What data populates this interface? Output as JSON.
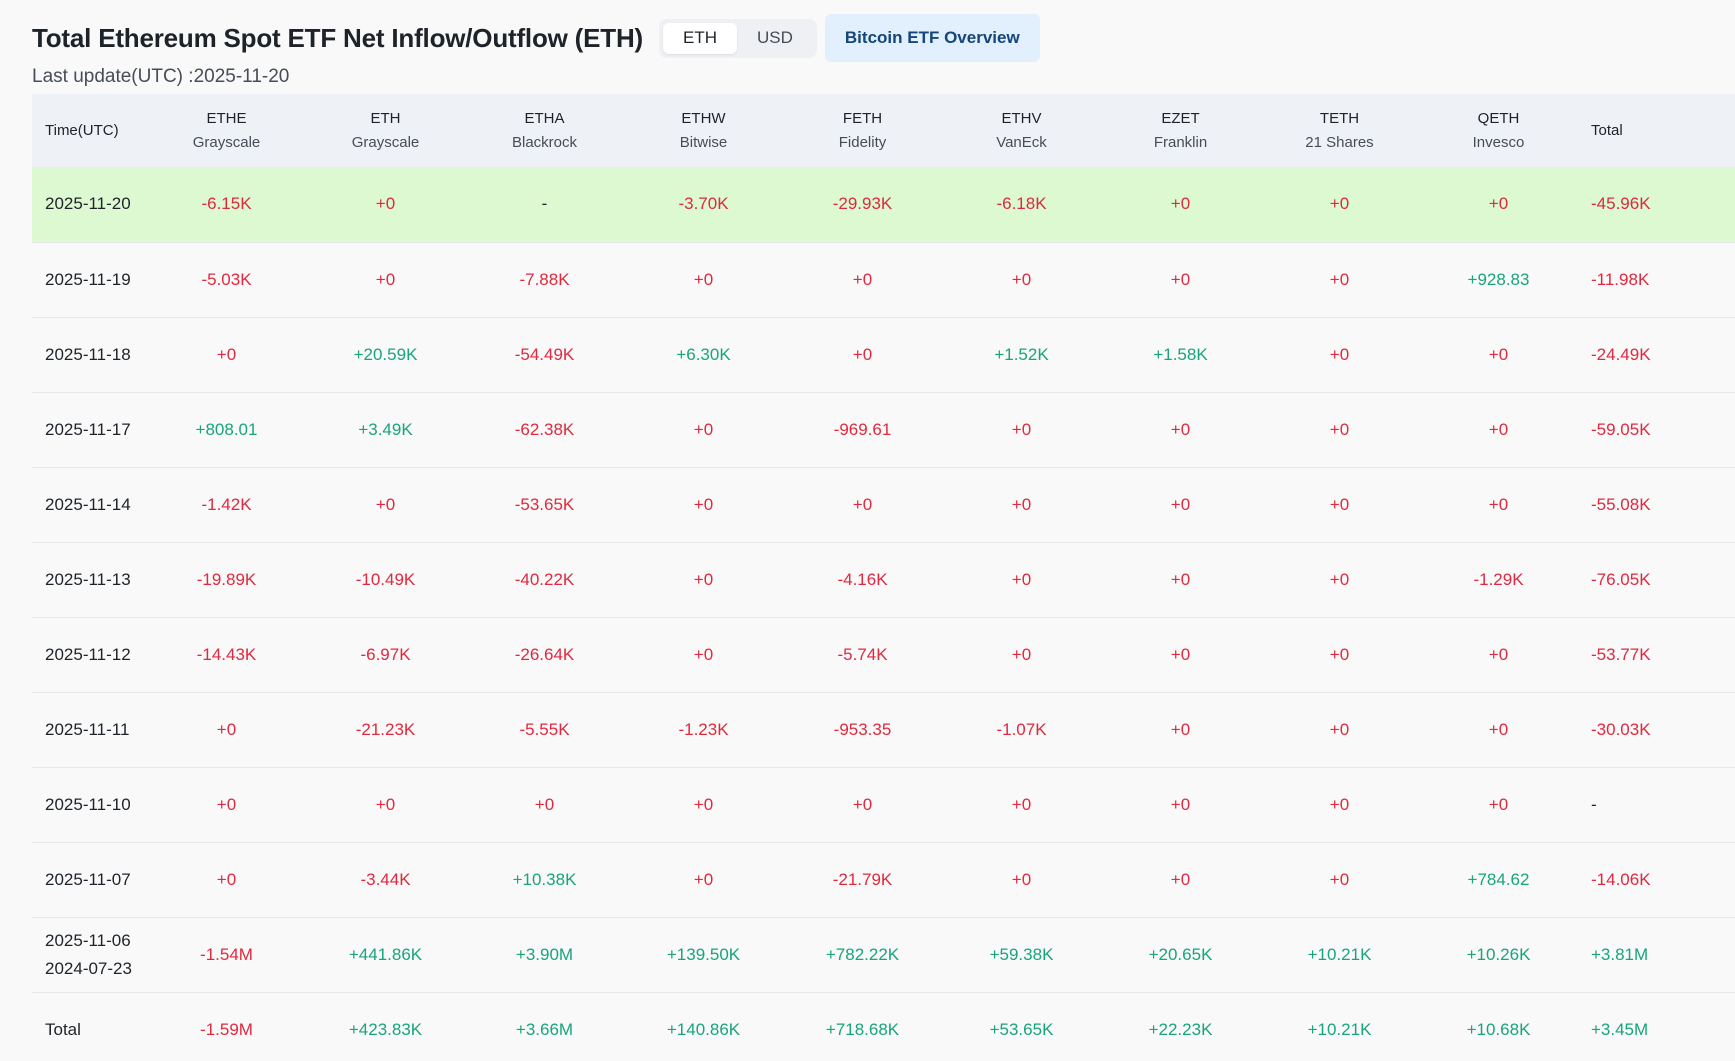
{
  "header": {
    "title": "Total Ethereum Spot ETF Net Inflow/Outflow (ETH)",
    "toggle": {
      "eth_label": "ETH",
      "usd_label": "USD"
    },
    "overview_button": "Bitcoin ETF Overview",
    "last_update": "Last update(UTC) :2025-11-20"
  },
  "colors": {
    "negative": "#e0293f",
    "positive": "#18a57b",
    "highlight_row": "#dcf9d2",
    "header_bg": "#eef1f5"
  },
  "table": {
    "columns": [
      {
        "ticker": "Time(UTC)",
        "issuer": ""
      },
      {
        "ticker": "ETHE",
        "issuer": "Grayscale"
      },
      {
        "ticker": "ETH",
        "issuer": "Grayscale"
      },
      {
        "ticker": "ETHA",
        "issuer": "Blackrock"
      },
      {
        "ticker": "ETHW",
        "issuer": "Bitwise"
      },
      {
        "ticker": "FETH",
        "issuer": "Fidelity"
      },
      {
        "ticker": "ETHV",
        "issuer": "VanEck"
      },
      {
        "ticker": "EZET",
        "issuer": "Franklin"
      },
      {
        "ticker": "TETH",
        "issuer": "21 Shares"
      },
      {
        "ticker": "QETH",
        "issuer": "Invesco"
      },
      {
        "ticker": "Total",
        "issuer": ""
      }
    ],
    "rows": [
      {
        "date": "2025-11-20",
        "date2": "",
        "highlight": true,
        "values": [
          "-6.15K",
          "+0",
          "-",
          "-3.70K",
          "-29.93K",
          "-6.18K",
          "+0",
          "+0",
          "+0",
          "-45.96K"
        ],
        "signs": [
          "neg",
          "neg",
          "neutral",
          "neg",
          "neg",
          "neg",
          "neg",
          "neg",
          "neg",
          "neg"
        ]
      },
      {
        "date": "2025-11-19",
        "date2": "",
        "highlight": false,
        "values": [
          "-5.03K",
          "+0",
          "-7.88K",
          "+0",
          "+0",
          "+0",
          "+0",
          "+0",
          "+928.83",
          "-11.98K"
        ],
        "signs": [
          "neg",
          "neg",
          "neg",
          "neg",
          "neg",
          "neg",
          "neg",
          "neg",
          "pos",
          "neg"
        ]
      },
      {
        "date": "2025-11-18",
        "date2": "",
        "highlight": false,
        "values": [
          "+0",
          "+20.59K",
          "-54.49K",
          "+6.30K",
          "+0",
          "+1.52K",
          "+1.58K",
          "+0",
          "+0",
          "-24.49K"
        ],
        "signs": [
          "neg",
          "pos",
          "neg",
          "pos",
          "neg",
          "pos",
          "pos",
          "neg",
          "neg",
          "neg"
        ]
      },
      {
        "date": "2025-11-17",
        "date2": "",
        "highlight": false,
        "values": [
          "+808.01",
          "+3.49K",
          "-62.38K",
          "+0",
          "-969.61",
          "+0",
          "+0",
          "+0",
          "+0",
          "-59.05K"
        ],
        "signs": [
          "pos",
          "pos",
          "neg",
          "neg",
          "neg",
          "neg",
          "neg",
          "neg",
          "neg",
          "neg"
        ]
      },
      {
        "date": "2025-11-14",
        "date2": "",
        "highlight": false,
        "values": [
          "-1.42K",
          "+0",
          "-53.65K",
          "+0",
          "+0",
          "+0",
          "+0",
          "+0",
          "+0",
          "-55.08K"
        ],
        "signs": [
          "neg",
          "neg",
          "neg",
          "neg",
          "neg",
          "neg",
          "neg",
          "neg",
          "neg",
          "neg"
        ]
      },
      {
        "date": "2025-11-13",
        "date2": "",
        "highlight": false,
        "values": [
          "-19.89K",
          "-10.49K",
          "-40.22K",
          "+0",
          "-4.16K",
          "+0",
          "+0",
          "+0",
          "-1.29K",
          "-76.05K"
        ],
        "signs": [
          "neg",
          "neg",
          "neg",
          "neg",
          "neg",
          "neg",
          "neg",
          "neg",
          "neg",
          "neg"
        ]
      },
      {
        "date": "2025-11-12",
        "date2": "",
        "highlight": false,
        "values": [
          "-14.43K",
          "-6.97K",
          "-26.64K",
          "+0",
          "-5.74K",
          "+0",
          "+0",
          "+0",
          "+0",
          "-53.77K"
        ],
        "signs": [
          "neg",
          "neg",
          "neg",
          "neg",
          "neg",
          "neg",
          "neg",
          "neg",
          "neg",
          "neg"
        ]
      },
      {
        "date": "2025-11-11",
        "date2": "",
        "highlight": false,
        "values": [
          "+0",
          "-21.23K",
          "-5.55K",
          "-1.23K",
          "-953.35",
          "-1.07K",
          "+0",
          "+0",
          "+0",
          "-30.03K"
        ],
        "signs": [
          "neg",
          "neg",
          "neg",
          "neg",
          "neg",
          "neg",
          "neg",
          "neg",
          "neg",
          "neg"
        ]
      },
      {
        "date": "2025-11-10",
        "date2": "",
        "highlight": false,
        "values": [
          "+0",
          "+0",
          "+0",
          "+0",
          "+0",
          "+0",
          "+0",
          "+0",
          "+0",
          "-"
        ],
        "signs": [
          "neg",
          "neg",
          "neg",
          "neg",
          "neg",
          "neg",
          "neg",
          "neg",
          "neg",
          "neutral"
        ]
      },
      {
        "date": "2025-11-07",
        "date2": "",
        "highlight": false,
        "values": [
          "+0",
          "-3.44K",
          "+10.38K",
          "+0",
          "-21.79K",
          "+0",
          "+0",
          "+0",
          "+784.62",
          "-14.06K"
        ],
        "signs": [
          "neg",
          "neg",
          "pos",
          "neg",
          "neg",
          "neg",
          "neg",
          "neg",
          "pos",
          "neg"
        ]
      },
      {
        "date": "2025-11-06",
        "date2": "2024-07-23",
        "highlight": false,
        "values": [
          "-1.54M",
          "+441.86K",
          "+3.90M",
          "+139.50K",
          "+782.22K",
          "+59.38K",
          "+20.65K",
          "+10.21K",
          "+10.26K",
          "+3.81M"
        ],
        "signs": [
          "neg",
          "pos",
          "pos",
          "pos",
          "pos",
          "pos",
          "pos",
          "pos",
          "pos",
          "pos"
        ]
      }
    ],
    "total_row": {
      "label": "Total",
      "values": [
        "-1.59M",
        "+423.83K",
        "+3.66M",
        "+140.86K",
        "+718.68K",
        "+53.65K",
        "+22.23K",
        "+10.21K",
        "+10.68K",
        "+3.45M"
      ],
      "signs": [
        "neg",
        "pos",
        "pos",
        "pos",
        "pos",
        "pos",
        "pos",
        "pos",
        "pos",
        "pos"
      ]
    }
  }
}
